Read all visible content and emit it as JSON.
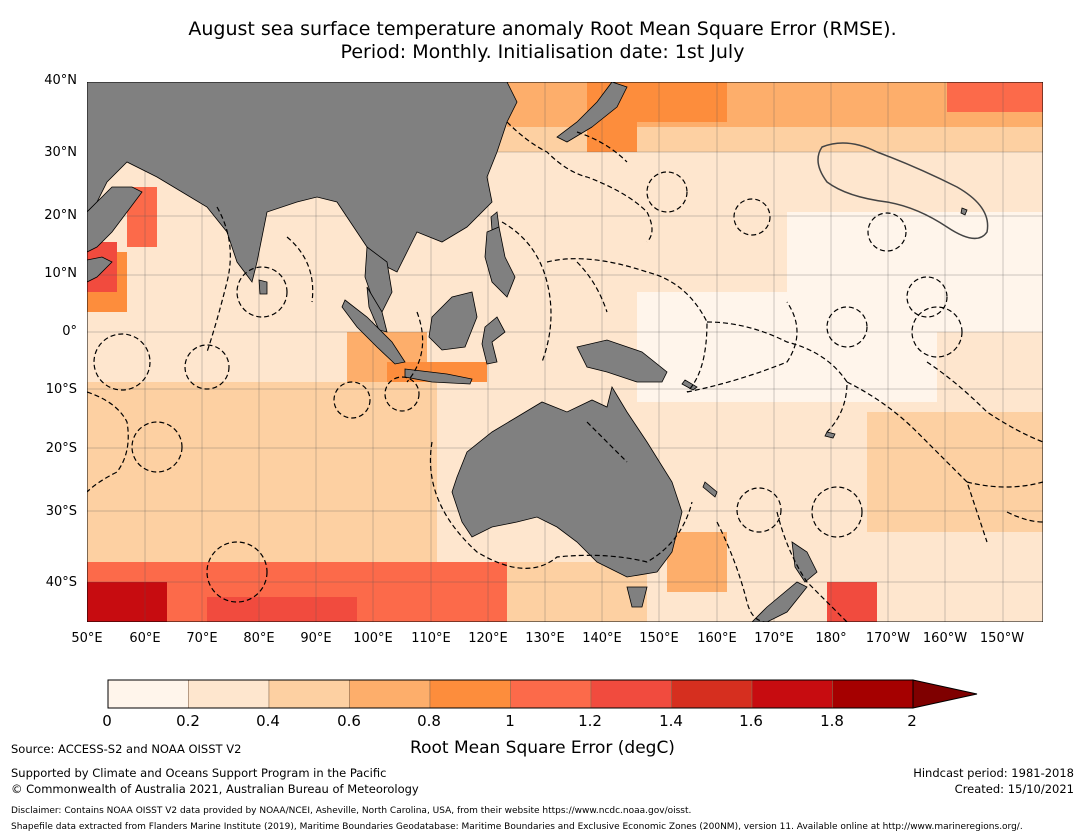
{
  "title": {
    "line1": "August sea surface temperature anomaly Root Mean Square Error (RMSE).",
    "line2": "Period: Monthly. Initialisation date: 1st July"
  },
  "map": {
    "lat_labels": [
      "40°N",
      "30°N",
      "20°N",
      "10°N",
      "0°",
      "10°S",
      "20°S",
      "30°S",
      "40°S"
    ],
    "lon_labels": [
      "50°E",
      "60°E",
      "70°E",
      "80°E",
      "90°E",
      "100°E",
      "110°E",
      "120°E",
      "130°E",
      "140°E",
      "150°E",
      "160°E",
      "170°E",
      "180°",
      "170°W",
      "160°W",
      "150°W"
    ],
    "colors": {
      "land": "#808080",
      "ocean_low": "#fff5eb",
      "ocean_mid": "#fdd0a2",
      "ocean_high": "#fc8d59",
      "ocean_max": "#b30000",
      "eez": "#000000",
      "grid": "#555555"
    }
  },
  "colorbar": {
    "ticks": [
      "0",
      "0.2",
      "0.4",
      "0.6",
      "0.8",
      "1",
      "1.2",
      "1.4",
      "1.6",
      "1.8",
      "2"
    ],
    "colors": [
      "#fff5eb",
      "#fee6ce",
      "#fdd0a2",
      "#fdae6b",
      "#fd8d3c",
      "#fc6a4a",
      "#f14b3e",
      "#d62f1f",
      "#c70c10",
      "#a50000",
      "#7f0000"
    ],
    "label": "Root Mean Square Error (degC)"
  },
  "footer": {
    "source": "Source: ACCESS-S2 and NOAA OISST V2",
    "support": "Supported by Climate and Oceans Support Program in the Pacific",
    "copyright": "© Commonwealth of Australia 2021, Australian Bureau of Meteorology",
    "hindcast": "Hindcast period: 1981-2018",
    "created": "Created: 15/10/2021",
    "disclaimer": "Disclaimer: Contains NOAA OISST V2 data provided by NOAA/NCEI, Asheville, North Carolina, USA, from their website https://www.ncdc.noaa.gov/oisst.",
    "shapefile": "Shapefile data extracted from Flanders Marine Institute (2019), Maritime Boundaries Geodatabase: Maritime Boundaries and Exclusive Economic Zones (200NM), version 11. Available online at http://www.marineregions.org/."
  }
}
